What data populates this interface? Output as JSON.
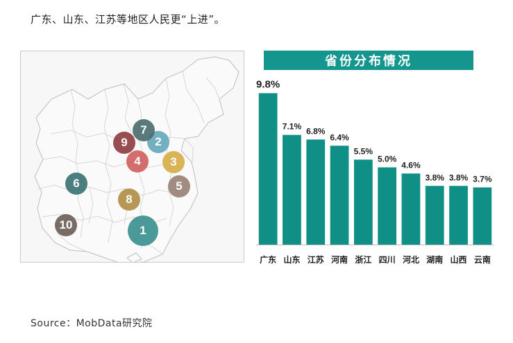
{
  "headline": "广东、山东、江苏等地区人民更“上进”。",
  "source": "Source：MobData研究院",
  "map": {
    "markers": [
      {
        "label": "1",
        "color": "#3d9291"
      },
      {
        "label": "2",
        "color": "#67a9bd"
      },
      {
        "label": "3",
        "color": "#d7b04a"
      },
      {
        "label": "4",
        "color": "#d16262"
      },
      {
        "label": "5",
        "color": "#9b8377"
      },
      {
        "label": "6",
        "color": "#3d7474"
      },
      {
        "label": "7",
        "color": "#4d6f70"
      },
      {
        "label": "8",
        "color": "#b28f48"
      },
      {
        "label": "9",
        "color": "#8f3f44"
      },
      {
        "label": "10",
        "color": "#6f6059"
      }
    ]
  },
  "chart_data": {
    "type": "bar",
    "title": "省份分布情况",
    "categories": [
      "广东",
      "山东",
      "江苏",
      "河南",
      "浙江",
      "四川",
      "河北",
      "湖南",
      "山西",
      "云南"
    ],
    "values": [
      9.8,
      7.1,
      6.8,
      6.4,
      5.5,
      5.0,
      4.6,
      3.8,
      3.8,
      3.7
    ],
    "value_labels": [
      "9.8%",
      "7.1%",
      "6.8%",
      "6.4%",
      "5.5%",
      "5.0%",
      "4.6%",
      "3.8%",
      "3.8%",
      "3.7%"
    ],
    "bar_color": "#0f8f86",
    "ylim": [
      0,
      10
    ],
    "grid": false
  }
}
